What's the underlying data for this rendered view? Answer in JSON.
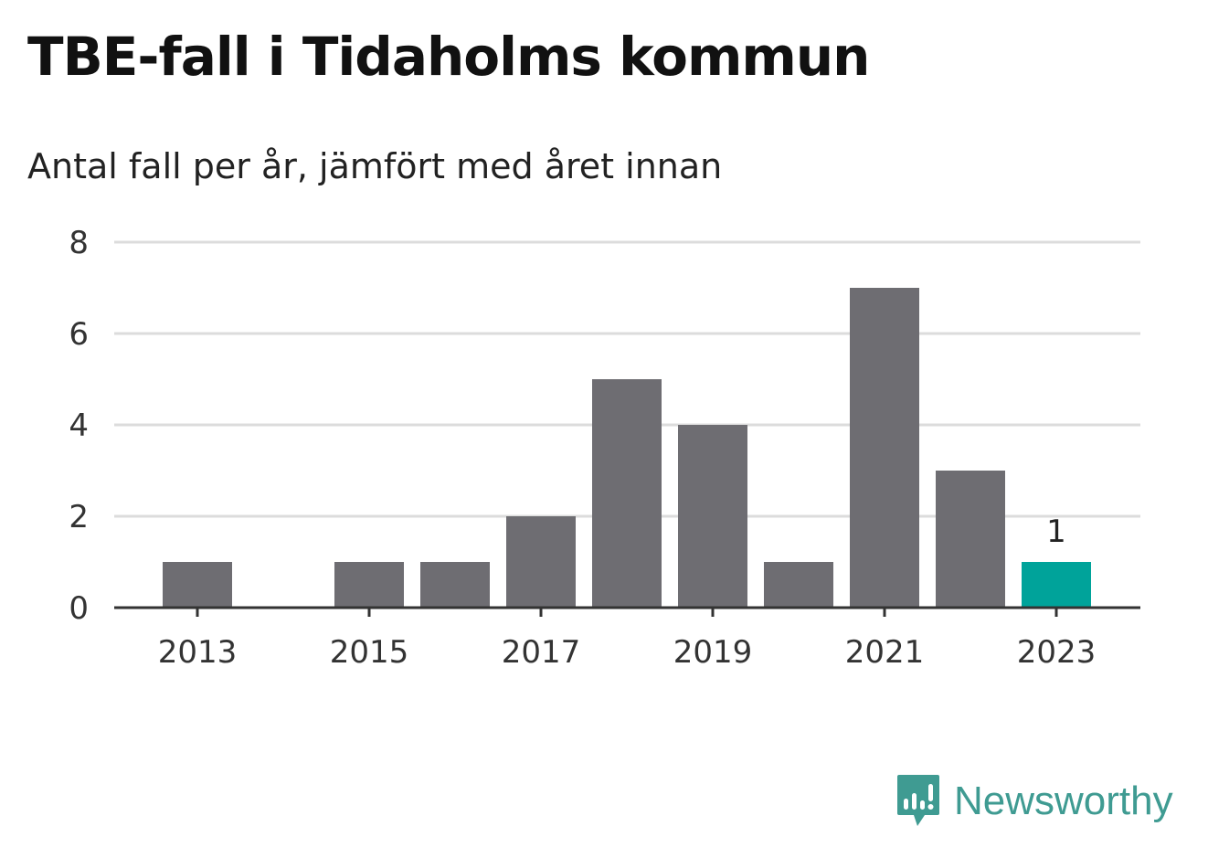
{
  "header": {
    "title": "TBE-fall i Tidaholms kommun",
    "subtitle": "Antal fall per år, jämfört med året innan"
  },
  "brand": {
    "name": "Newsworthy",
    "logo_icon": "newsworthy-chart-bubble-icon",
    "color": "#3f9b92"
  },
  "chart_data": {
    "type": "bar",
    "categories": [
      2013,
      2014,
      2015,
      2016,
      2017,
      2018,
      2019,
      2020,
      2021,
      2022,
      2023
    ],
    "values": [
      1,
      0,
      1,
      1,
      2,
      5,
      4,
      1,
      7,
      3,
      1
    ],
    "xticks": [
      "2013",
      "2015",
      "2017",
      "2019",
      "2021",
      "2023"
    ],
    "yticks": [
      "0",
      "2",
      "4",
      "6",
      "8"
    ],
    "ylim": [
      0,
      8
    ],
    "grid": true,
    "highlight_category": 2023,
    "highlight_label": "1",
    "colors": {
      "bar": "#6e6d72",
      "highlight": "#00a39a",
      "grid": "#dcdcdc",
      "axis": "#333333"
    },
    "title": "",
    "xlabel": "",
    "ylabel": ""
  }
}
